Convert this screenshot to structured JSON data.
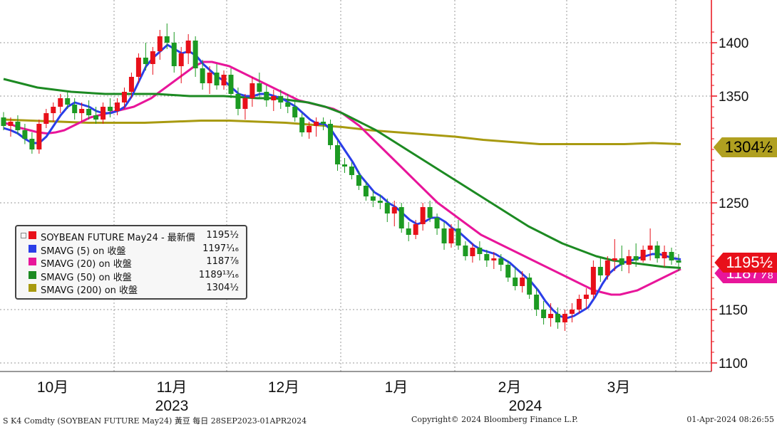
{
  "chart_data": {
    "type": "candlestick",
    "y_axis": {
      "ticks": [
        1100,
        1150,
        1250,
        1350,
        1400
      ],
      "ylim": [
        1080,
        1420
      ],
      "side": "right"
    },
    "x_axis": {
      "months": [
        "10月",
        "11月",
        "12月",
        "1月",
        "2月",
        "3月"
      ],
      "years": [
        "2023",
        "2024"
      ]
    },
    "grid": true,
    "candles": [
      {
        "o": 1330,
        "h": 1335,
        "l": 1318,
        "c": 1322
      },
      {
        "o": 1322,
        "h": 1330,
        "l": 1312,
        "c": 1326
      },
      {
        "o": 1326,
        "h": 1332,
        "l": 1314,
        "c": 1318
      },
      {
        "o": 1318,
        "h": 1324,
        "l": 1305,
        "c": 1310
      },
      {
        "o": 1310,
        "h": 1316,
        "l": 1296,
        "c": 1300
      },
      {
        "o": 1300,
        "h": 1328,
        "l": 1296,
        "c": 1324
      },
      {
        "o": 1324,
        "h": 1338,
        "l": 1320,
        "c": 1334
      },
      {
        "o": 1334,
        "h": 1344,
        "l": 1326,
        "c": 1340
      },
      {
        "o": 1340,
        "h": 1352,
        "l": 1334,
        "c": 1348
      },
      {
        "o": 1348,
        "h": 1354,
        "l": 1338,
        "c": 1342
      },
      {
        "o": 1342,
        "h": 1348,
        "l": 1328,
        "c": 1334
      },
      {
        "o": 1334,
        "h": 1344,
        "l": 1326,
        "c": 1338
      },
      {
        "o": 1338,
        "h": 1346,
        "l": 1328,
        "c": 1332
      },
      {
        "o": 1332,
        "h": 1340,
        "l": 1324,
        "c": 1328
      },
      {
        "o": 1328,
        "h": 1344,
        "l": 1324,
        "c": 1340
      },
      {
        "o": 1340,
        "h": 1348,
        "l": 1330,
        "c": 1336
      },
      {
        "o": 1336,
        "h": 1348,
        "l": 1332,
        "c": 1344
      },
      {
        "o": 1344,
        "h": 1358,
        "l": 1338,
        "c": 1354
      },
      {
        "o": 1354,
        "h": 1372,
        "l": 1348,
        "c": 1368
      },
      {
        "o": 1368,
        "h": 1390,
        "l": 1362,
        "c": 1386
      },
      {
        "o": 1386,
        "h": 1400,
        "l": 1374,
        "c": 1380
      },
      {
        "o": 1380,
        "h": 1396,
        "l": 1370,
        "c": 1392
      },
      {
        "o": 1392,
        "h": 1412,
        "l": 1384,
        "c": 1406
      },
      {
        "o": 1406,
        "h": 1418,
        "l": 1394,
        "c": 1400
      },
      {
        "o": 1400,
        "h": 1410,
        "l": 1372,
        "c": 1378
      },
      {
        "o": 1378,
        "h": 1396,
        "l": 1362,
        "c": 1390
      },
      {
        "o": 1390,
        "h": 1408,
        "l": 1380,
        "c": 1402
      },
      {
        "o": 1402,
        "h": 1406,
        "l": 1368,
        "c": 1376
      },
      {
        "o": 1376,
        "h": 1384,
        "l": 1356,
        "c": 1362
      },
      {
        "o": 1362,
        "h": 1378,
        "l": 1352,
        "c": 1372
      },
      {
        "o": 1372,
        "h": 1380,
        "l": 1356,
        "c": 1360
      },
      {
        "o": 1360,
        "h": 1374,
        "l": 1356,
        "c": 1370
      },
      {
        "o": 1370,
        "h": 1376,
        "l": 1348,
        "c": 1352
      },
      {
        "o": 1352,
        "h": 1358,
        "l": 1332,
        "c": 1338
      },
      {
        "o": 1338,
        "h": 1352,
        "l": 1328,
        "c": 1348
      },
      {
        "o": 1348,
        "h": 1368,
        "l": 1340,
        "c": 1362
      },
      {
        "o": 1362,
        "h": 1372,
        "l": 1348,
        "c": 1354
      },
      {
        "o": 1354,
        "h": 1360,
        "l": 1340,
        "c": 1346
      },
      {
        "o": 1346,
        "h": 1356,
        "l": 1336,
        "c": 1350
      },
      {
        "o": 1350,
        "h": 1356,
        "l": 1338,
        "c": 1344
      },
      {
        "o": 1344,
        "h": 1352,
        "l": 1334,
        "c": 1340
      },
      {
        "o": 1340,
        "h": 1346,
        "l": 1326,
        "c": 1330
      },
      {
        "o": 1330,
        "h": 1334,
        "l": 1312,
        "c": 1316
      },
      {
        "o": 1316,
        "h": 1326,
        "l": 1310,
        "c": 1322
      },
      {
        "o": 1322,
        "h": 1330,
        "l": 1312,
        "c": 1326
      },
      {
        "o": 1326,
        "h": 1330,
        "l": 1318,
        "c": 1324
      },
      {
        "o": 1324,
        "h": 1328,
        "l": 1300,
        "c": 1304
      },
      {
        "o": 1304,
        "h": 1308,
        "l": 1280,
        "c": 1286
      },
      {
        "o": 1286,
        "h": 1292,
        "l": 1278,
        "c": 1284
      },
      {
        "o": 1284,
        "h": 1288,
        "l": 1272,
        "c": 1276
      },
      {
        "o": 1276,
        "h": 1280,
        "l": 1262,
        "c": 1266
      },
      {
        "o": 1266,
        "h": 1270,
        "l": 1252,
        "c": 1256
      },
      {
        "o": 1256,
        "h": 1262,
        "l": 1246,
        "c": 1252
      },
      {
        "o": 1252,
        "h": 1258,
        "l": 1244,
        "c": 1250
      },
      {
        "o": 1250,
        "h": 1254,
        "l": 1232,
        "c": 1240
      },
      {
        "o": 1240,
        "h": 1252,
        "l": 1228,
        "c": 1246
      },
      {
        "o": 1246,
        "h": 1250,
        "l": 1222,
        "c": 1226
      },
      {
        "o": 1226,
        "h": 1232,
        "l": 1214,
        "c": 1220
      },
      {
        "o": 1220,
        "h": 1234,
        "l": 1216,
        "c": 1230
      },
      {
        "o": 1230,
        "h": 1250,
        "l": 1224,
        "c": 1246
      },
      {
        "o": 1246,
        "h": 1252,
        "l": 1232,
        "c": 1236
      },
      {
        "o": 1236,
        "h": 1240,
        "l": 1220,
        "c": 1226
      },
      {
        "o": 1226,
        "h": 1232,
        "l": 1206,
        "c": 1212
      },
      {
        "o": 1212,
        "h": 1230,
        "l": 1208,
        "c": 1226
      },
      {
        "o": 1226,
        "h": 1234,
        "l": 1206,
        "c": 1210
      },
      {
        "o": 1210,
        "h": 1214,
        "l": 1196,
        "c": 1200
      },
      {
        "o": 1200,
        "h": 1212,
        "l": 1194,
        "c": 1208
      },
      {
        "o": 1208,
        "h": 1214,
        "l": 1196,
        "c": 1202
      },
      {
        "o": 1202,
        "h": 1206,
        "l": 1190,
        "c": 1196
      },
      {
        "o": 1196,
        "h": 1204,
        "l": 1188,
        "c": 1198
      },
      {
        "o": 1198,
        "h": 1202,
        "l": 1186,
        "c": 1192
      },
      {
        "o": 1192,
        "h": 1196,
        "l": 1176,
        "c": 1180
      },
      {
        "o": 1180,
        "h": 1190,
        "l": 1168,
        "c": 1172
      },
      {
        "o": 1172,
        "h": 1186,
        "l": 1166,
        "c": 1180
      },
      {
        "o": 1180,
        "h": 1184,
        "l": 1160,
        "c": 1164
      },
      {
        "o": 1164,
        "h": 1170,
        "l": 1144,
        "c": 1150
      },
      {
        "o": 1150,
        "h": 1158,
        "l": 1136,
        "c": 1142
      },
      {
        "o": 1142,
        "h": 1156,
        "l": 1134,
        "c": 1146
      },
      {
        "o": 1146,
        "h": 1152,
        "l": 1132,
        "c": 1138
      },
      {
        "o": 1138,
        "h": 1150,
        "l": 1130,
        "c": 1146
      },
      {
        "o": 1146,
        "h": 1156,
        "l": 1138,
        "c": 1150
      },
      {
        "o": 1150,
        "h": 1164,
        "l": 1146,
        "c": 1160
      },
      {
        "o": 1160,
        "h": 1170,
        "l": 1150,
        "c": 1164
      },
      {
        "o": 1164,
        "h": 1196,
        "l": 1160,
        "c": 1190
      },
      {
        "o": 1190,
        "h": 1198,
        "l": 1176,
        "c": 1182
      },
      {
        "o": 1182,
        "h": 1200,
        "l": 1178,
        "c": 1196
      },
      {
        "o": 1196,
        "h": 1216,
        "l": 1186,
        "c": 1198
      },
      {
        "o": 1198,
        "h": 1210,
        "l": 1186,
        "c": 1192
      },
      {
        "o": 1192,
        "h": 1206,
        "l": 1184,
        "c": 1200
      },
      {
        "o": 1200,
        "h": 1212,
        "l": 1190,
        "c": 1196
      },
      {
        "o": 1196,
        "h": 1210,
        "l": 1194,
        "c": 1206
      },
      {
        "o": 1206,
        "h": 1226,
        "l": 1196,
        "c": 1210
      },
      {
        "o": 1210,
        "h": 1214,
        "l": 1194,
        "c": 1198
      },
      {
        "o": 1198,
        "h": 1210,
        "l": 1190,
        "c": 1204
      },
      {
        "o": 1204,
        "h": 1208,
        "l": 1192,
        "c": 1196
      },
      {
        "o": 1196,
        "h": 1202,
        "l": 1186,
        "c": 1194
      }
    ],
    "series": [
      {
        "name": "SMAVG (5)",
        "color": "#2a3ee8",
        "values": [
          1320,
          1318,
          1315,
          1310,
          1306,
          1306,
          1312,
          1322,
          1332,
          1340,
          1344,
          1342,
          1340,
          1336,
          1334,
          1334,
          1336,
          1340,
          1350,
          1364,
          1378,
          1386,
          1392,
          1398,
          1394,
          1390,
          1392,
          1388,
          1380,
          1374,
          1368,
          1364,
          1358,
          1352,
          1350,
          1350,
          1352,
          1352,
          1350,
          1348,
          1344,
          1340,
          1334,
          1328,
          1324,
          1324,
          1318,
          1308,
          1298,
          1288,
          1276,
          1268,
          1260,
          1256,
          1250,
          1246,
          1240,
          1234,
          1230,
          1232,
          1236,
          1236,
          1232,
          1226,
          1222,
          1216,
          1210,
          1206,
          1204,
          1202,
          1198,
          1194,
          1188,
          1182,
          1176,
          1168,
          1158,
          1150,
          1144,
          1142,
          1144,
          1148,
          1152,
          1162,
          1174,
          1184,
          1190,
          1194,
          1196,
          1198,
          1200,
          1202,
          1202,
          1200,
          1198,
          1197
        ]
      },
      {
        "name": "SMAVG (20)",
        "color": "#e8159a",
        "values": [
          1325,
          1323,
          1320,
          1318,
          1316,
          1315,
          1316,
          1318,
          1322,
          1326,
          1330,
          1332,
          1334,
          1336,
          1338,
          1340,
          1344,
          1348,
          1354,
          1360,
          1366,
          1372,
          1378,
          1382,
          1382,
          1380,
          1378,
          1374,
          1370,
          1366,
          1362,
          1358,
          1354,
          1350,
          1346,
          1344,
          1342,
          1340,
          1338,
          1334,
          1328,
          1322,
          1314,
          1306,
          1298,
          1290,
          1282,
          1274,
          1266,
          1258,
          1250,
          1244,
          1238,
          1232,
          1226,
          1220,
          1216,
          1212,
          1208,
          1204,
          1200,
          1196,
          1192,
          1188,
          1184,
          1180,
          1176,
          1172,
          1168,
          1166,
          1164,
          1164,
          1166,
          1168,
          1172,
          1176,
          1180,
          1184,
          1188
        ]
      },
      {
        "name": "SMAVG (50)",
        "color": "#1c8a22",
        "values": [
          1366,
          1362,
          1358,
          1356,
          1354,
          1353,
          1352,
          1352,
          1352,
          1352,
          1351,
          1350,
          1350,
          1350,
          1349,
          1348,
          1348,
          1346,
          1344,
          1340,
          1334,
          1326,
          1318,
          1308,
          1298,
          1288,
          1278,
          1268,
          1258,
          1248,
          1238,
          1228,
          1220,
          1212,
          1206,
          1200,
          1196,
          1194,
          1192,
          1190,
          1189
        ]
      },
      {
        "name": "SMAVG (200)",
        "color": "#a89a10",
        "values": [
          1328,
          1327,
          1326,
          1325,
          1325,
          1325,
          1326,
          1327,
          1327,
          1326,
          1325,
          1323,
          1321,
          1318,
          1316,
          1314,
          1312,
          1309,
          1307,
          1305,
          1305,
          1305,
          1305,
          1306,
          1305
        ]
      }
    ],
    "last_value_tags": [
      {
        "label": "1304½",
        "value": 1304.5,
        "bg": "#b0a020",
        "fg": "#000000"
      },
      {
        "label": "1187⅞",
        "value": 1187.875,
        "bg": "#e8159a",
        "fg": "#ffffff"
      },
      {
        "label": "1195½",
        "value": 1195.5,
        "bg": "#e8101a",
        "fg": "#ffffff"
      }
    ]
  },
  "legend": {
    "rows": [
      {
        "swatch": "#e8101a",
        "name": "SOYBEAN FUTURE May24 - 最新價",
        "value": "1195½"
      },
      {
        "swatch": "#2a3ee8",
        "name": "SMAVG (5)  on 收盤",
        "value": "1197¹⁄₁₆"
      },
      {
        "swatch": "#e8159a",
        "name": "SMAVG (20)  on 收盤",
        "value": "1187⅞"
      },
      {
        "swatch": "#1c8a22",
        "name": "SMAVG (50)  on 收盤",
        "value": "1189¹³⁄₁₆"
      },
      {
        "swatch": "#a89a10",
        "name": "SMAVG (200)  on 收盤",
        "value": "1304½"
      }
    ]
  },
  "footer": {
    "left": "S K4 Comdty (SOYBEAN FUTURE    May24) 黃豆  每日 28SEP2023-01APR2024",
    "center": "Copyright© 2024 Bloomberg Finance L.P.",
    "right": "01-Apr-2024 08:26:55"
  },
  "colors": {
    "up": "#e8101a",
    "down": "#1c9a22",
    "axis": "#e8101a"
  }
}
